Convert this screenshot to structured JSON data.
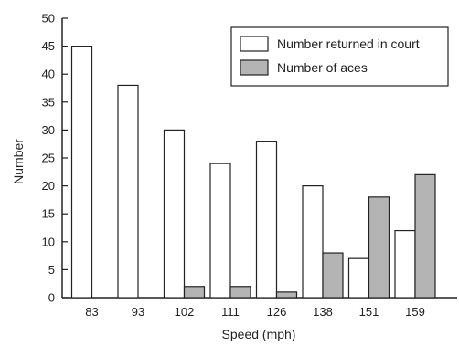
{
  "chart_data": {
    "type": "bar",
    "xlabel": "Speed (mph)",
    "ylabel": "Number",
    "categories": [
      "83",
      "93",
      "102",
      "111",
      "126",
      "138",
      "151",
      "159"
    ],
    "series": [
      {
        "name": "Number returned in court",
        "values": [
          45,
          38,
          30,
          24,
          28,
          20,
          7,
          12
        ],
        "color": "#ffffff"
      },
      {
        "name": "Number of aces",
        "values": [
          0,
          0,
          2,
          2,
          1,
          8,
          18,
          22
        ],
        "color": "#b4b4b4"
      }
    ],
    "ylim": [
      0,
      50
    ],
    "yticks": [
      0,
      5,
      10,
      15,
      20,
      25,
      30,
      35,
      40,
      45,
      50
    ],
    "grid": false,
    "legend_position": "top-right"
  }
}
